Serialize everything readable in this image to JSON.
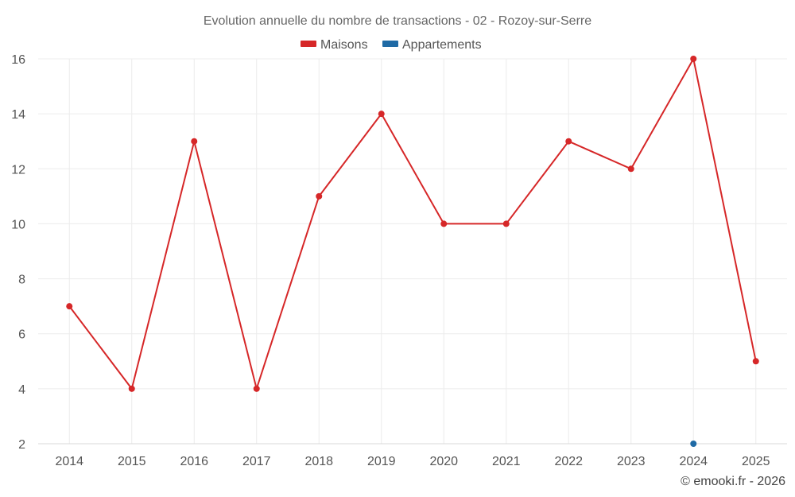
{
  "chart_data": {
    "type": "line",
    "title": "Evolution annuelle du nombre de transactions - 02 - Rozoy-sur-Serre",
    "categories": [
      "2014",
      "2015",
      "2016",
      "2017",
      "2018",
      "2019",
      "2020",
      "2021",
      "2022",
      "2023",
      "2024",
      "2025"
    ],
    "series": [
      {
        "name": "Maisons",
        "color": "#d62728",
        "values": [
          7,
          4,
          13,
          4,
          11,
          14,
          10,
          10,
          13,
          12,
          16,
          5
        ]
      },
      {
        "name": "Appartements",
        "color": "#1f6aa5",
        "values": [
          null,
          null,
          null,
          null,
          null,
          null,
          null,
          null,
          null,
          null,
          2,
          null
        ]
      }
    ],
    "ylim": [
      2,
      16
    ],
    "yticks": [
      2,
      4,
      6,
      8,
      10,
      12,
      14,
      16
    ],
    "xlabel": "",
    "ylabel": "",
    "grid": true,
    "legend": "top-center"
  },
  "credit": "© emooki.fr - 2026"
}
